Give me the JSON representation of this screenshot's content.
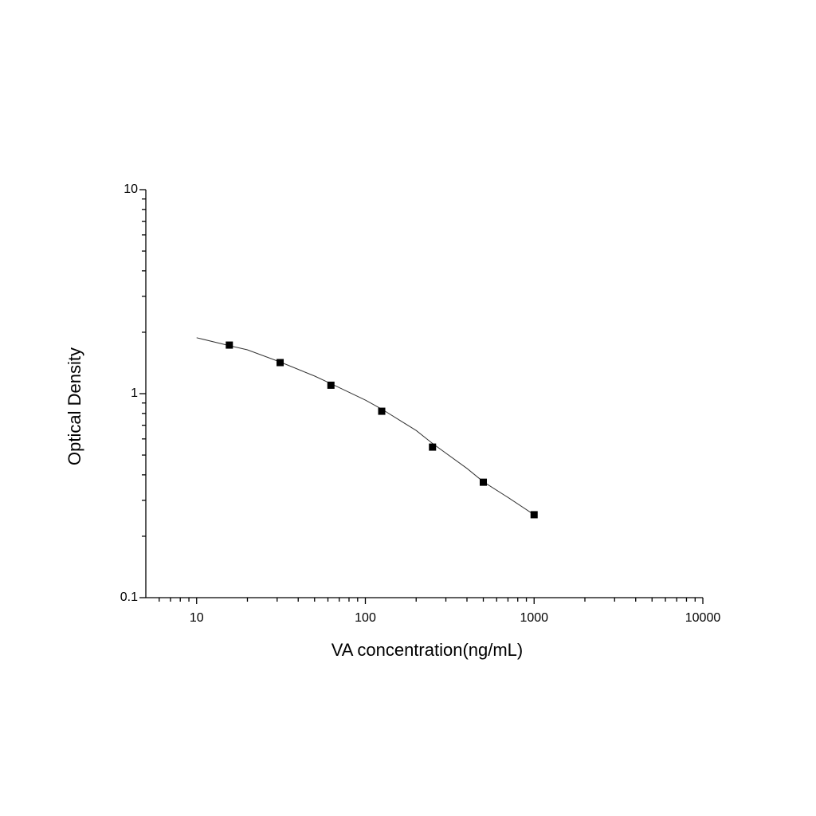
{
  "chart_data": {
    "type": "scatter",
    "xlabel": "VA concentration(ng/mL)",
    "ylabel": "Optical Density",
    "x": [
      15.625,
      31.25,
      62.5,
      125,
      250,
      500,
      1000
    ],
    "values": [
      1.73,
      1.42,
      1.1,
      0.82,
      0.547,
      0.368,
      0.255
    ],
    "color": "#000000",
    "fit": {
      "x": [
        10,
        15.625,
        20,
        31.25,
        50,
        62.5,
        100,
        125,
        200,
        250,
        400,
        500,
        700,
        1000
      ],
      "values": [
        1.88,
        1.72,
        1.64,
        1.43,
        1.22,
        1.12,
        0.93,
        0.84,
        0.66,
        0.57,
        0.43,
        0.37,
        0.31,
        0.255
      ],
      "color": "#333333"
    },
    "xlog": true,
    "ylog": true,
    "xlim": [
      5,
      10000
    ],
    "ylim": [
      0.1,
      10
    ],
    "xticks": [
      10,
      100,
      1000,
      10000
    ],
    "yticks": [
      0.1,
      1,
      10
    ],
    "xminorticks": [
      6,
      7,
      8,
      9,
      20,
      30,
      40,
      50,
      60,
      70,
      80,
      90,
      200,
      300,
      400,
      500,
      600,
      700,
      800,
      900,
      2000,
      3000,
      4000,
      5000,
      6000,
      7000,
      8000,
      9000
    ],
    "yminorticks": [
      0.2,
      0.3,
      0.4,
      0.5,
      0.6,
      0.7,
      0.8,
      0.9,
      2,
      3,
      4,
      5,
      6,
      7,
      8,
      9
    ],
    "grid": false
  }
}
